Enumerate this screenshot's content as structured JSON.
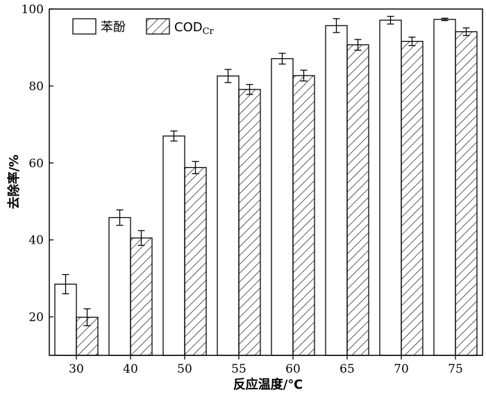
{
  "chart_data": {
    "type": "bar",
    "title": "",
    "xlabel": "反应温度/℃",
    "ylabel": "去除率/%",
    "categories": [
      "30",
      "40",
      "50",
      "55",
      "60",
      "65",
      "70",
      "75"
    ],
    "ylim": [
      10,
      100
    ],
    "yticks": [
      "20",
      "40",
      "60",
      "80",
      "100"
    ],
    "grid": false,
    "legend_position": "top-left",
    "series": [
      {
        "name": "苯酚",
        "fill": "#ffffff",
        "pattern": "none",
        "values": [
          28.5,
          45.8,
          67.0,
          82.6,
          87.1,
          95.7,
          97.1,
          97.3
        ],
        "errors": [
          2.5,
          2.0,
          1.3,
          1.7,
          1.4,
          1.8,
          1.0,
          0.3
        ]
      },
      {
        "name": "COD",
        "name_subscript": "Cr",
        "fill": "#ffffff",
        "pattern": "diagonal-hatch",
        "values": [
          19.9,
          40.5,
          58.8,
          79.1,
          82.7,
          90.7,
          91.6,
          94.1
        ],
        "errors": [
          2.2,
          1.9,
          1.6,
          1.3,
          1.4,
          1.4,
          1.1,
          1.0
        ]
      }
    ]
  }
}
